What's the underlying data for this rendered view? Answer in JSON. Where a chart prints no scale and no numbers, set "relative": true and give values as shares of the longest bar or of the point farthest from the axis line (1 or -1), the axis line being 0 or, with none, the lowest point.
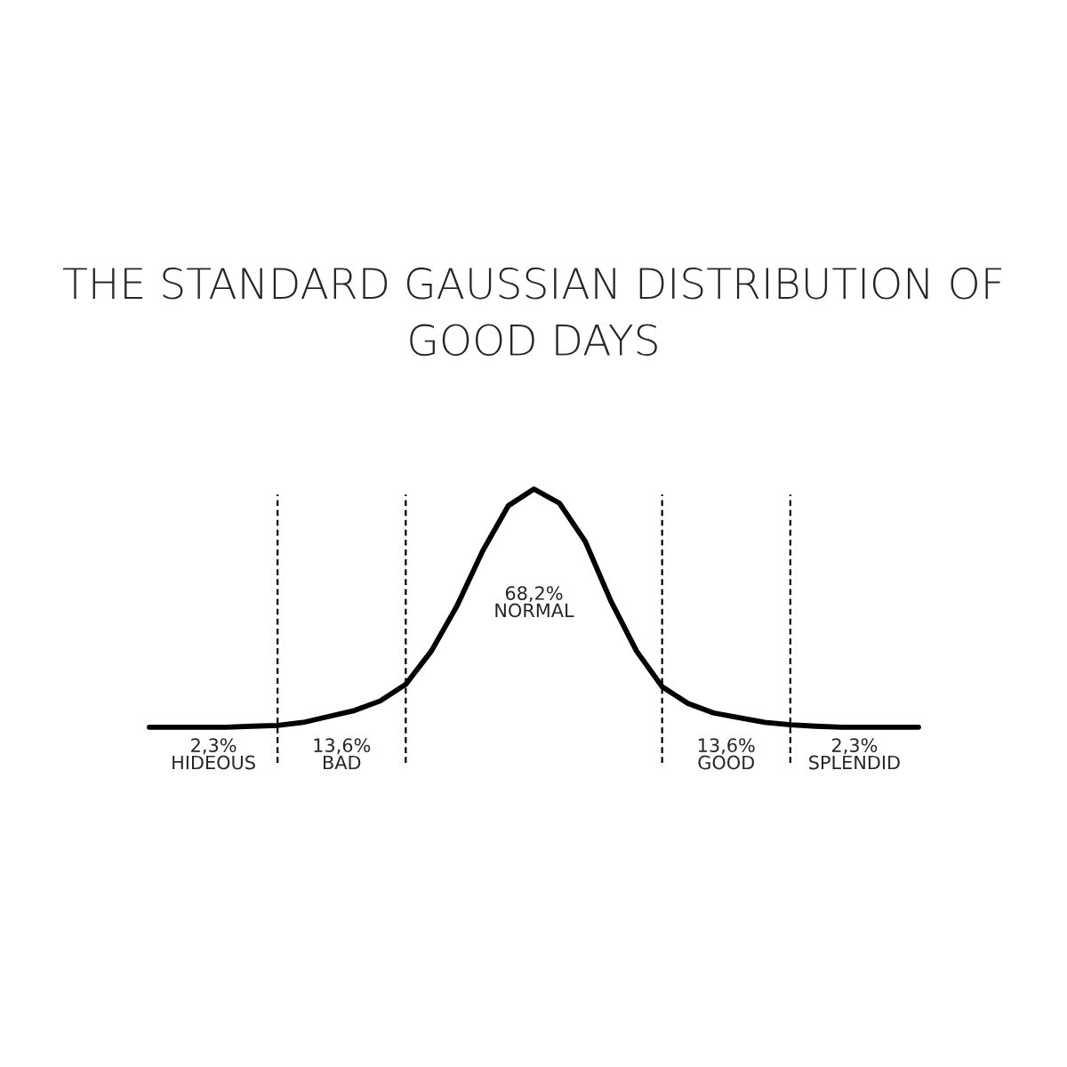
{
  "chart_data": {
    "type": "line",
    "title": "THE STANDARD GAUSSIAN DISTRIBUTION OF GOOD DAYS",
    "relative": true,
    "grid": "x",
    "legend": false,
    "marker": "none",
    "line_style": "solid",
    "categories": [
      null,
      null,
      null,
      null,
      null,
      null,
      null,
      null,
      null,
      null,
      null,
      null,
      null,
      null,
      null,
      null,
      null,
      null,
      null,
      null,
      null,
      null,
      null,
      null,
      null,
      null,
      null,
      null,
      null,
      null,
      null
    ],
    "series": [
      {
        "color": "#000000",
        "values": [
          0,
          0,
          0,
          0,
          0.004,
          0.007,
          0.02,
          0.045,
          0.07,
          0.11,
          0.18,
          0.32,
          0.51,
          0.74,
          0.93,
          1.0,
          0.94,
          0.78,
          0.53,
          0.32,
          0.17,
          0.1,
          0.06,
          0.04,
          0.02,
          0.01,
          0.004,
          0,
          0,
          0,
          0
        ]
      }
    ],
    "annotations": [
      "2,3%\nHIDEOUS",
      "13,6%\nBAD",
      "68,2%\nNORMAL",
      "13,6%\nGOOD",
      "2,3%\nSPLENDID"
    ]
  }
}
